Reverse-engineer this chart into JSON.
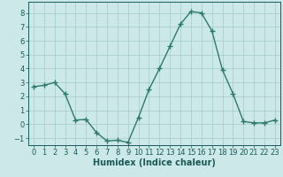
{
  "x": [
    0,
    1,
    2,
    3,
    4,
    5,
    6,
    7,
    8,
    9,
    10,
    11,
    12,
    13,
    14,
    15,
    16,
    17,
    18,
    19,
    20,
    21,
    22,
    23
  ],
  "y": [
    2.7,
    2.8,
    3.0,
    2.2,
    0.3,
    0.35,
    -0.6,
    -1.2,
    -1.15,
    -1.3,
    0.5,
    2.5,
    4.0,
    5.6,
    7.2,
    8.1,
    8.0,
    6.7,
    3.9,
    2.2,
    0.2,
    0.1,
    0.1,
    0.3
  ],
  "line_color": "#2d7a6a",
  "marker": "+",
  "marker_size": 4,
  "bg_color": "#cce8e8",
  "grid_color": "#aacece",
  "xlabel": "Humidex (Indice chaleur)",
  "ylim": [
    -1.5,
    8.8
  ],
  "xlim": [
    -0.5,
    23.5
  ],
  "yticks": [
    -1,
    0,
    1,
    2,
    3,
    4,
    5,
    6,
    7,
    8
  ],
  "xticks": [
    0,
    1,
    2,
    3,
    4,
    5,
    6,
    7,
    8,
    9,
    10,
    11,
    12,
    13,
    14,
    15,
    16,
    17,
    18,
    19,
    20,
    21,
    22,
    23
  ],
  "font_color": "#1a5a5a",
  "xlabel_fontsize": 7,
  "tick_fontsize": 6,
  "linewidth": 1.0,
  "markeredgewidth": 1.0
}
